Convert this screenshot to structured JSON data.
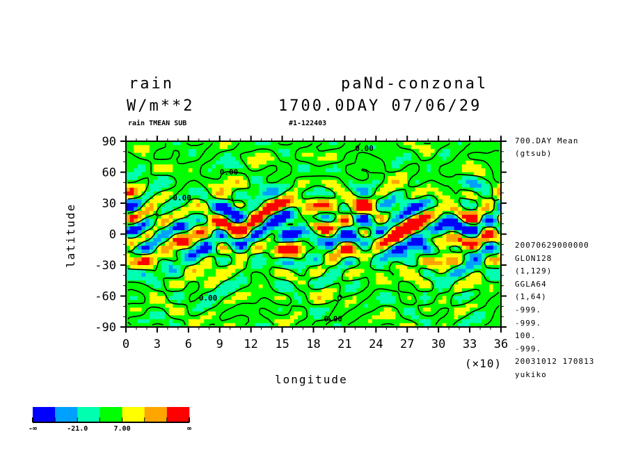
{
  "chart_data": {
    "type": "heatmap",
    "title_left": "rain",
    "title_right": "paNd-conzonal",
    "units": "W/m**2",
    "time_label": "1700.0DAY 07/06/29",
    "subtitle_left": "rain TMEAN SUB",
    "subtitle_right": "#1-122403",
    "xlabel": "longitude",
    "ylabel": "latitude",
    "x_multiplier": "(×10)",
    "xlim": [
      0,
      36
    ],
    "ylim": [
      -90,
      90
    ],
    "x_ticks": [
      "0",
      "3",
      "6",
      "9",
      "12",
      "15",
      "18",
      "21",
      "24",
      "27",
      "30",
      "33",
      "36"
    ],
    "y_ticks": [
      "90",
      "60",
      "30",
      "0",
      "-30",
      "-60",
      "-90"
    ],
    "contour_label": "0.00",
    "levels": [
      -35,
      -21,
      -7,
      7,
      21,
      35
    ],
    "colors": [
      "#0000ff",
      "#00a0ff",
      "#00ffb0",
      "#00ff00",
      "#ffff00",
      "#ffa500",
      "#ff0000"
    ],
    "colorbar_labels": [
      "-∞",
      "-21.0",
      "7.00",
      "∞"
    ]
  },
  "side_info": [
    "700.DAY Mean",
    "(gtsub)",
    "20070629000000",
    "GLON128",
    "(1,129)",
    "GGLA64",
    "(1,64)",
    "-999.",
    "-999.",
    "100.",
    "-999.",
    "20031012 170813",
    "yukiko"
  ]
}
